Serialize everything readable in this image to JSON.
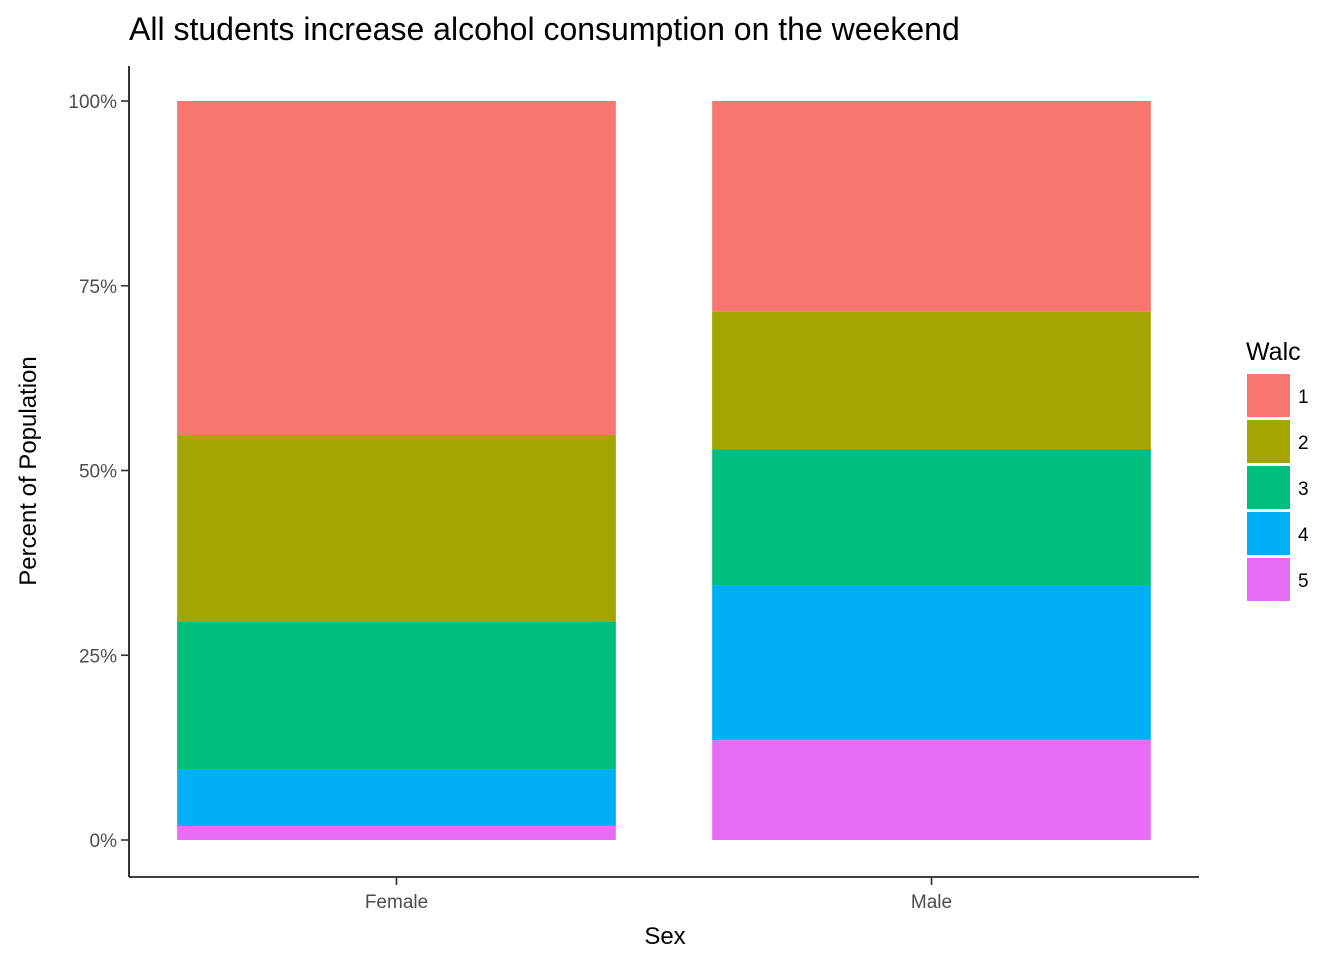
{
  "chart_data": {
    "type": "bar",
    "stacked": true,
    "title": "All students increase alcohol consumption on the weekend",
    "xlabel": "Sex",
    "ylabel": "Percent of Population",
    "categories": [
      "Female",
      "Male"
    ],
    "ylim": [
      0,
      1
    ],
    "yticks": [
      {
        "value": 0,
        "label": "0%"
      },
      {
        "value": 0.25,
        "label": "25%"
      },
      {
        "value": 0.5,
        "label": "50%"
      },
      {
        "value": 0.75,
        "label": "75%"
      },
      {
        "value": 1,
        "label": "100%"
      }
    ],
    "legend_title": "Walc",
    "legend_position": "right",
    "grid": false,
    "series": [
      {
        "name": "1",
        "color": "#F8766D",
        "values": [
          0.452,
          0.285
        ]
      },
      {
        "name": "2",
        "color": "#A3A500",
        "values": [
          0.252,
          0.186
        ]
      },
      {
        "name": "3",
        "color": "#00BF7D",
        "values": [
          0.2,
          0.184
        ]
      },
      {
        "name": "4",
        "color": "#00B0F6",
        "values": [
          0.077,
          0.21
        ]
      },
      {
        "name": "5",
        "color": "#E76BF3",
        "values": [
          0.019,
          0.135
        ]
      }
    ]
  }
}
